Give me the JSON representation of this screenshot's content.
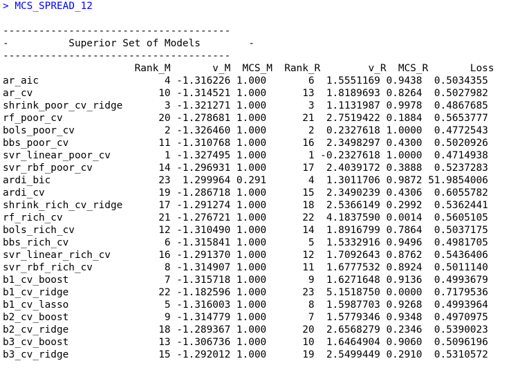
{
  "console": {
    "prompt_symbol": ">",
    "command": "MCS_SPREAD_12",
    "rule_line": "--------------------------------------",
    "title_line": "-          Superior Set of Models        -",
    "header_line": "                      Rank_M       v_M  MCS_M  Rank_R        v_R  MCS_R       Loss",
    "rows": [
      "ar_aic                     4 -1.316226 1.000       6  1.5551169 0.9438  0.5034355",
      "ar_cv                     10 -1.314521 1.000      13  1.8189693 0.8264  0.5027982",
      "shrink_poor_cv_ridge       3 -1.321271 1.000       3  1.1131987 0.9978  0.4867685",
      "rf_poor_cv                20 -1.278681 1.000      21  2.7519422 0.1884  0.5653777",
      "bols_poor_cv               2 -1.326460 1.000       2  0.2327618 1.0000  0.4772543",
      "bbs_poor_cv               11 -1.310768 1.000      16  2.3498297 0.4300  0.5020926",
      "svr_linear_poor_cv         1 -1.327495 1.000       1 -0.2327618 1.0000  0.4714938",
      "svr_rbf_poor_cv           14 -1.296931 1.000      17  2.4039172 0.3888  0.5237283",
      "ardi_bic                  23  1.299964 0.291       4  1.3011706 0.9872 51.9854006",
      "ardi_cv                   19 -1.286718 1.000      15  2.3490239 0.4306  0.6055782",
      "shrink_rich_cv_ridge      17 -1.291274 1.000      18  2.5366149 0.2992  0.5362441",
      "rf_rich_cv                21 -1.276721 1.000      22  4.1837590 0.0014  0.5605105",
      "bols_rich_cv              12 -1.310490 1.000      14  1.8916799 0.7864  0.5037175",
      "bbs_rich_cv                6 -1.315841 1.000       5  1.5332916 0.9496  0.4981705",
      "svr_linear_rich_cv        16 -1.291370 1.000      12  1.7092643 0.8762  0.5436406",
      "svr_rbf_rich_cv            8 -1.314907 1.000      11  1.6777532 0.8924  0.5011140",
      "b1_cv_boost                7 -1.315718 1.000       9  1.6271648 0.9136  0.4993679",
      "b1_cv_ridge               22 -1.182596 1.000      23  5.1518750 0.0000  0.7179536",
      "b1_cv_lasso                5 -1.316003 1.000       8  1.5987703 0.9268  0.4993964",
      "b2_cv_boost                9 -1.314779 1.000       7  1.5779346 0.9348  0.4970975",
      "b2_cv_ridge               18 -1.289367 1.000      20  2.6568279 0.2346  0.5390023",
      "b3_cv_boost               13 -1.306736 1.000      10  1.6464904 0.9060  0.5096196",
      "b3_cv_ridge               15 -1.292012 1.000      19  2.5499449 0.2910  0.5310572"
    ]
  }
}
